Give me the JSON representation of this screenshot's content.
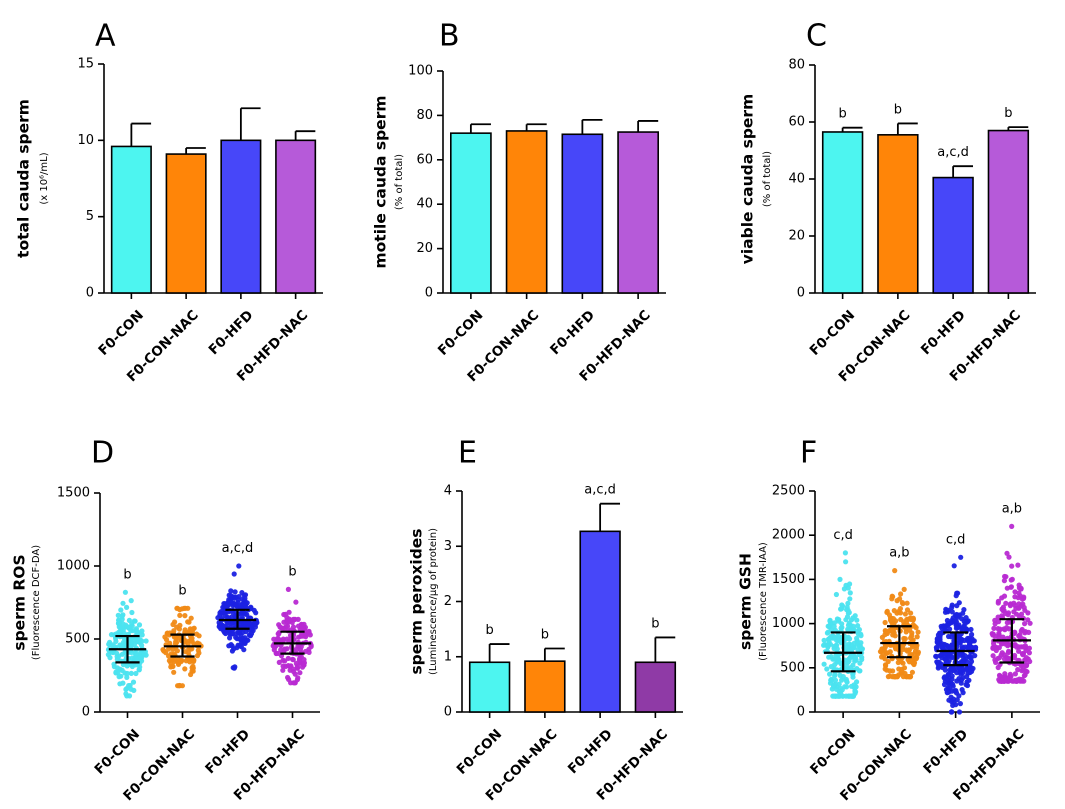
{
  "categories": [
    "F0-CON",
    "F0-CON-NAC",
    "F0-HFD",
    "F0-HFD-NAC"
  ],
  "colors": {
    "F0-CON": "#4df5f0",
    "F0-CON-NAC": "#ff8508",
    "F0-HFD": "#4747f9",
    "F0-HFD-NAC": "#b65ad9",
    "dot_F0-CON": "#4be3ef",
    "dot_F0-CON-NAC": "#f08a16",
    "dot_F0-HFD": "#1b22e2",
    "dot_F0-HFD-NAC": "#b82ad2",
    "bar_E_F0-HFD-NAC": "#8f3aa6"
  },
  "chart_data": [
    {
      "panel": "A",
      "type": "bar",
      "title": "",
      "xlabel": "",
      "ylabel": "total cauda sperm",
      "ylabel_units": "(x 10⁶/mL)",
      "ylim": [
        0,
        15
      ],
      "yticks": [
        0,
        5,
        10,
        15
      ],
      "categories": [
        "F0-CON",
        "F0-CON-NAC",
        "F0-HFD",
        "F0-HFD-NAC"
      ],
      "values": [
        9.6,
        9.1,
        10.0,
        10.0
      ],
      "errors": [
        1.5,
        0.4,
        2.1,
        0.6
      ],
      "annotations": [
        "",
        "",
        "",
        ""
      ]
    },
    {
      "panel": "B",
      "type": "bar",
      "title": "",
      "xlabel": "",
      "ylabel": "motile cauda sperm",
      "ylabel_units": "(% of total)",
      "ylim": [
        0,
        100
      ],
      "yticks": [
        0,
        20,
        40,
        60,
        80,
        100
      ],
      "categories": [
        "F0-CON",
        "F0-CON-NAC",
        "F0-HFD",
        "F0-HFD-NAC"
      ],
      "values": [
        72,
        73,
        71.5,
        72.5
      ],
      "errors": [
        4,
        3,
        6.5,
        5
      ],
      "annotations": [
        "",
        "",
        "",
        ""
      ]
    },
    {
      "panel": "C",
      "type": "bar",
      "title": "",
      "xlabel": "",
      "ylabel": "viable cauda sperm",
      "ylabel_units": "(% of total)",
      "ylim": [
        0,
        80
      ],
      "yticks": [
        0,
        20,
        40,
        60,
        80
      ],
      "categories": [
        "F0-CON",
        "F0-CON-NAC",
        "F0-HFD",
        "F0-HFD-NAC"
      ],
      "values": [
        56.5,
        55.5,
        40.5,
        57
      ],
      "errors": [
        1.5,
        4,
        4,
        1.2
      ],
      "annotations": [
        "b",
        "b",
        "a,c,d",
        "b"
      ]
    },
    {
      "panel": "D",
      "type": "scatter",
      "title": "",
      "xlabel": "",
      "ylabel": "sperm ROS",
      "ylabel_units": "(Fluorescence DCF-DA)",
      "ylim": [
        0,
        1500
      ],
      "yticks": [
        0,
        500,
        1000,
        1500
      ],
      "categories": [
        "F0-CON",
        "F0-CON-NAC",
        "F0-HFD",
        "F0-HFD-NAC"
      ],
      "median": [
        430,
        450,
        630,
        470
      ],
      "q1": [
        340,
        380,
        570,
        400
      ],
      "q3": [
        520,
        530,
        700,
        550
      ],
      "min": [
        110,
        180,
        300,
        200
      ],
      "max": [
        820,
        710,
        1000,
        840
      ],
      "n": [
        190,
        130,
        220,
        150
      ],
      "annotations": [
        "b",
        "b",
        "a,c,d",
        "b"
      ]
    },
    {
      "panel": "E",
      "type": "bar",
      "title": "",
      "xlabel": "",
      "ylabel": "sperm peroxides",
      "ylabel_units": "(Luminescence/µg of protein)",
      "ylim": [
        0,
        4
      ],
      "yticks": [
        0,
        1,
        2,
        3,
        4
      ],
      "categories": [
        "F0-CON",
        "F0-CON-NAC",
        "F0-HFD",
        "F0-HFD-NAC"
      ],
      "values": [
        0.9,
        0.92,
        3.27,
        0.9
      ],
      "errors": [
        0.33,
        0.23,
        0.5,
        0.45
      ],
      "annotations": [
        "b",
        "b",
        "a,c,d",
        "b"
      ]
    },
    {
      "panel": "F",
      "type": "scatter",
      "title": "",
      "xlabel": "",
      "ylabel": "sperm GSH",
      "ylabel_units": "(Fluorescence TMR-IAA)",
      "ylim": [
        0,
        2500
      ],
      "yticks": [
        0,
        500,
        1000,
        1500,
        2000,
        2500
      ],
      "categories": [
        "F0-CON",
        "F0-CON-NAC",
        "F0-HFD",
        "F0-HFD-NAC"
      ],
      "median": [
        670,
        780,
        690,
        810
      ],
      "q1": [
        460,
        620,
        530,
        560
      ],
      "q3": [
        900,
        970,
        900,
        1050
      ],
      "min": [
        180,
        400,
        0,
        350
      ],
      "max": [
        1800,
        1600,
        1750,
        2100
      ],
      "n": [
        260,
        200,
        320,
        230
      ],
      "annotations": [
        "c,d",
        "a,b",
        "c,d",
        "a,b"
      ]
    }
  ]
}
